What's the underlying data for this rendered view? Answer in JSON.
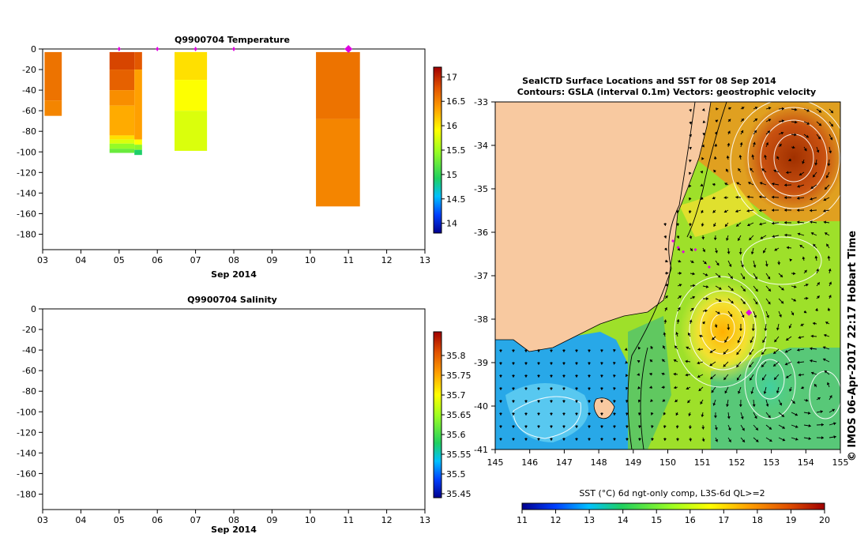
{
  "temperature_panel": {
    "title": "Q9900704  Temperature",
    "xlabel": "Sep 2014"
  },
  "salinity_panel": {
    "title": "Q9900704  Salinity",
    "xlabel": "Sep 2014"
  },
  "map_panel": {
    "title_line1": "SealCTD Surface Locations and SST for 08 Sep 2014",
    "title_line2": "Contours: GSLA (interval 0.1m) Vectors: geostrophic velocity",
    "colorbar_label": "SST (°C) 6d ngt-only comp, L3S-6d QL>=2",
    "credit": "© IMOS 06-Apr-2017 22:17 Hobart Time"
  },
  "colors": {
    "land": "#f8c9a0",
    "marker": "#e000e0",
    "accent_high": "#a00000",
    "accent_low": "#00008f"
  },
  "chart_data": [
    {
      "type": "heatmap",
      "title": "Q9900704  Temperature",
      "xlabel": "Sep 2014",
      "ylabel": "",
      "x_ticks": [
        "03",
        "04",
        "05",
        "06",
        "07",
        "08",
        "09",
        "10",
        "11",
        "12",
        "13"
      ],
      "xlim": [
        3,
        13
      ],
      "y_ticks": [
        0,
        -20,
        -40,
        -60,
        -80,
        -100,
        -120,
        -140,
        -160,
        -180
      ],
      "ylim": [
        -195,
        0
      ],
      "colorbar": {
        "min": 13.8,
        "max": 17.2,
        "ticks": [
          14,
          14.5,
          15,
          15.5,
          16,
          16.5,
          17
        ]
      },
      "profiles": [
        {
          "x_start": 3.05,
          "x_end": 3.5,
          "segments": [
            {
              "top": -3,
              "bottom": -50,
              "value": 16.6
            },
            {
              "top": -50,
              "bottom": -65,
              "value": 16.5
            }
          ]
        },
        {
          "x_start": 4.75,
          "x_end": 5.4,
          "segments": [
            {
              "top": -3,
              "bottom": -20,
              "value": 16.85
            },
            {
              "top": -20,
              "bottom": -40,
              "value": 16.7
            },
            {
              "top": -40,
              "bottom": -55,
              "value": 16.45
            },
            {
              "top": -55,
              "bottom": -84,
              "value": 16.3
            },
            {
              "top": -84,
              "bottom": -88,
              "value": 16.05
            },
            {
              "top": -88,
              "bottom": -92,
              "value": 15.75
            },
            {
              "top": -92,
              "bottom": -97,
              "value": 15.45
            },
            {
              "top": -97,
              "bottom": -101,
              "value": 15.25
            }
          ]
        },
        {
          "x_start": 5.4,
          "x_end": 5.6,
          "segments": [
            {
              "top": -3,
              "bottom": -20,
              "value": 16.75
            },
            {
              "top": -20,
              "bottom": -88,
              "value": 16.35
            },
            {
              "top": -88,
              "bottom": -93,
              "value": 15.9
            },
            {
              "top": -93,
              "bottom": -98,
              "value": 15.4
            },
            {
              "top": -98,
              "bottom": -103,
              "value": 14.9
            }
          ]
        },
        {
          "x_start": 6.45,
          "x_end": 7.3,
          "segments": [
            {
              "top": -3,
              "bottom": -30,
              "value": 16.05
            },
            {
              "top": -30,
              "bottom": -60,
              "value": 15.9
            },
            {
              "top": -60,
              "bottom": -99,
              "value": 15.75
            }
          ]
        },
        {
          "x_start": 10.15,
          "x_end": 11.3,
          "segments": [
            {
              "top": -3,
              "bottom": -68,
              "value": 16.6
            },
            {
              "top": -68,
              "bottom": -153,
              "value": 16.5
            }
          ]
        }
      ],
      "markers": [
        {
          "x": 5.0,
          "value": 0
        },
        {
          "x": 6.0,
          "value": 0
        },
        {
          "x": 7.0,
          "value": 0
        },
        {
          "x": 8.0,
          "value": 0
        },
        {
          "x": 11.0,
          "value": 0,
          "large": true
        }
      ]
    },
    {
      "type": "heatmap",
      "title": "Q9900704  Salinity",
      "xlabel": "Sep 2014",
      "ylabel": "",
      "x_ticks": [
        "03",
        "04",
        "05",
        "06",
        "07",
        "08",
        "09",
        "10",
        "11",
        "12",
        "13"
      ],
      "xlim": [
        3,
        13
      ],
      "y_ticks": [
        0,
        -20,
        -40,
        -60,
        -80,
        -100,
        -120,
        -140,
        -160,
        -180
      ],
      "ylim": [
        -195,
        0
      ],
      "colorbar": {
        "min": 35.44,
        "max": 35.86,
        "ticks": [
          35.45,
          35.5,
          35.55,
          35.6,
          35.65,
          35.7,
          35.75,
          35.8
        ]
      },
      "profiles": []
    },
    {
      "type": "heatmap",
      "title": "SealCTD Surface Locations and SST for 08 Sep 2014",
      "subtitle": "Contours: GSLA (interval 0.1m) Vectors: geostrophic velocity",
      "x_ticks": [
        "145",
        "146",
        "147",
        "148",
        "149",
        "150",
        "151",
        "152",
        "153",
        "154",
        "155"
      ],
      "xlim": [
        145,
        155
      ],
      "y_ticks": [
        "-33",
        "-34",
        "-35",
        "-36",
        "-37",
        "-38",
        "-39",
        "-40",
        "-41"
      ],
      "ylim": [
        -41,
        -33
      ],
      "colorbar": {
        "label": "SST (°C) 6d ngt-only comp, L3S-6d QL>=2",
        "min": 11,
        "max": 20,
        "ticks": [
          "11",
          "12",
          "13",
          "14",
          "15",
          "16",
          "17",
          "18",
          "19",
          "20"
        ]
      },
      "locations": [
        {
          "lon": 150.15,
          "lat": -36.2
        },
        {
          "lon": 150.3,
          "lat": -36.35
        },
        {
          "lon": 150.45,
          "lat": -36.45
        },
        {
          "lon": 150.8,
          "lat": -36.4
        },
        {
          "lon": 151.2,
          "lat": -36.8
        },
        {
          "lon": 152.35,
          "lat": -37.85,
          "large": true
        }
      ]
    }
  ]
}
